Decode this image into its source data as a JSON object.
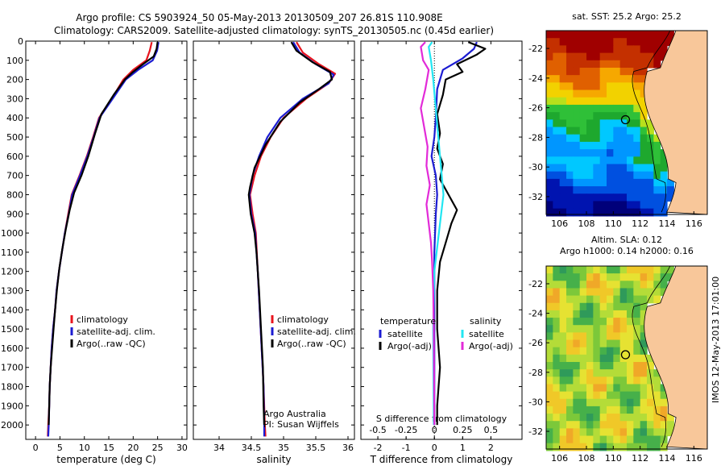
{
  "header": {
    "line1": "Argo profile: CS 5903924_50 05-May-2013 20130509_207 26.81S 110.908E",
    "line2": "Climatology: CARS2009. Satellite-adjusted climatology: synTS_20130505.nc (0.45d earlier)"
  },
  "side_stamp": "IMOS 12-May-2013 17:01:00",
  "colors": {
    "climatology": "#e8141e",
    "satellite": "#1c1cd2",
    "argo": "#000000",
    "salinity_satellite": "#22e6f2",
    "salinity_argo": "#e22ad8",
    "land": "#f8c79a"
  },
  "chart_data": [
    {
      "id": "temperature",
      "type": "line",
      "xlabel": "temperature (deg C)",
      "xlim": [
        -2,
        31
      ],
      "xticks": [
        0,
        5,
        10,
        15,
        20,
        25,
        30
      ],
      "ylim": [
        2075,
        0
      ],
      "yticks": [
        0,
        100,
        200,
        300,
        400,
        500,
        600,
        700,
        800,
        900,
        1000,
        1100,
        1200,
        1300,
        1400,
        1500,
        1600,
        1700,
        1800,
        1900,
        2000
      ],
      "legend": [
        "climatology",
        "satellite-adj. clim.",
        "Argo(..raw -QC)"
      ],
      "series": [
        {
          "name": "climatology",
          "color": "#e8141e",
          "points": [
            [
              23.8,
              5
            ],
            [
              23.4,
              50
            ],
            [
              22.7,
              100
            ],
            [
              20.0,
              150
            ],
            [
              18.0,
              200
            ],
            [
              15.6,
              300
            ],
            [
              13.0,
              400
            ],
            [
              11.8,
              500
            ],
            [
              10.5,
              600
            ],
            [
              9.0,
              700
            ],
            [
              7.4,
              800
            ],
            [
              6.7,
              900
            ],
            [
              6.0,
              1000
            ],
            [
              5.4,
              1100
            ],
            [
              4.8,
              1200
            ],
            [
              4.3,
              1300
            ],
            [
              4.0,
              1400
            ],
            [
              3.6,
              1500
            ],
            [
              3.3,
              1600
            ],
            [
              3.1,
              1700
            ],
            [
              2.9,
              1800
            ],
            [
              2.8,
              1900
            ],
            [
              2.6,
              2000
            ],
            [
              2.5,
              2060
            ]
          ]
        },
        {
          "name": "satellite-adj. clim.",
          "color": "#1c1cd2",
          "points": [
            [
              25.2,
              5
            ],
            [
              24.9,
              50
            ],
            [
              24.0,
              100
            ],
            [
              21.0,
              150
            ],
            [
              18.5,
              200
            ],
            [
              15.8,
              300
            ],
            [
              13.1,
              400
            ],
            [
              11.9,
              500
            ],
            [
              10.6,
              600
            ],
            [
              9.1,
              700
            ],
            [
              7.5,
              800
            ],
            [
              6.8,
              900
            ],
            [
              6.0,
              1000
            ],
            [
              5.4,
              1100
            ],
            [
              4.8,
              1200
            ],
            [
              4.3,
              1300
            ],
            [
              4.0,
              1400
            ],
            [
              3.6,
              1500
            ],
            [
              3.3,
              1600
            ],
            [
              3.1,
              1700
            ],
            [
              2.9,
              1800
            ],
            [
              2.8,
              1900
            ],
            [
              2.7,
              2000
            ],
            [
              2.6,
              2060
            ]
          ]
        },
        {
          "name": "Argo(..raw -QC)",
          "color": "#000000",
          "points": [
            [
              25.0,
              5
            ],
            [
              24.8,
              40
            ],
            [
              24.2,
              80
            ],
            [
              22.0,
              120
            ],
            [
              20.0,
              160
            ],
            [
              18.3,
              200
            ],
            [
              16.0,
              280
            ],
            [
              13.5,
              380
            ],
            [
              12.2,
              480
            ],
            [
              10.8,
              600
            ],
            [
              9.4,
              700
            ],
            [
              7.9,
              790
            ],
            [
              7.0,
              880
            ],
            [
              6.2,
              980
            ],
            [
              5.5,
              1080
            ],
            [
              4.9,
              1180
            ],
            [
              4.4,
              1290
            ],
            [
              4.0,
              1400
            ],
            [
              3.7,
              1500
            ],
            [
              3.4,
              1600
            ],
            [
              3.1,
              1700
            ],
            [
              2.9,
              1800
            ],
            [
              2.8,
              1900
            ],
            [
              2.7,
              2000
            ]
          ]
        }
      ]
    },
    {
      "id": "salinity",
      "type": "line",
      "xlabel": "salinity",
      "xlim": [
        33.6,
        36.1
      ],
      "xticks": [
        34,
        34.5,
        35,
        35.5,
        36
      ],
      "ylim": [
        2075,
        0
      ],
      "legend": [
        "climatology",
        "satellite-adj. clim.",
        "Argo(..raw -QC)"
      ],
      "credit": [
        "Argo Australia",
        "PI: Susan Wijffels"
      ],
      "series": [
        {
          "name": "climatology",
          "color": "#e8141e",
          "points": [
            [
              35.2,
              5
            ],
            [
              35.3,
              60
            ],
            [
              35.55,
              120
            ],
            [
              35.8,
              170
            ],
            [
              35.7,
              220
            ],
            [
              35.35,
              300
            ],
            [
              35.0,
              400
            ],
            [
              34.8,
              500
            ],
            [
              34.65,
              600
            ],
            [
              34.55,
              700
            ],
            [
              34.48,
              800
            ],
            [
              34.52,
              900
            ],
            [
              34.57,
              1000
            ],
            [
              34.6,
              1200
            ],
            [
              34.63,
              1400
            ],
            [
              34.66,
              1600
            ],
            [
              34.69,
              1800
            ],
            [
              34.71,
              2000
            ],
            [
              34.72,
              2060
            ]
          ]
        },
        {
          "name": "satellite-adj. clim.",
          "color": "#1c1cd2",
          "points": [
            [
              35.15,
              5
            ],
            [
              35.25,
              60
            ],
            [
              35.5,
              120
            ],
            [
              35.78,
              175
            ],
            [
              35.7,
              220
            ],
            [
              35.3,
              300
            ],
            [
              34.95,
              400
            ],
            [
              34.75,
              500
            ],
            [
              34.62,
              600
            ],
            [
              34.52,
              700
            ],
            [
              34.47,
              800
            ],
            [
              34.5,
              900
            ],
            [
              34.56,
              1000
            ],
            [
              34.6,
              1200
            ],
            [
              34.63,
              1400
            ],
            [
              34.66,
              1600
            ],
            [
              34.69,
              1800
            ],
            [
              34.7,
              2000
            ],
            [
              34.7,
              2060
            ]
          ]
        },
        {
          "name": "Argo(..raw -QC)",
          "color": "#000000",
          "points": [
            [
              35.12,
              5
            ],
            [
              35.2,
              50
            ],
            [
              35.45,
              110
            ],
            [
              35.72,
              160
            ],
            [
              35.75,
              200
            ],
            [
              35.55,
              250
            ],
            [
              35.25,
              320
            ],
            [
              34.95,
              420
            ],
            [
              34.72,
              540
            ],
            [
              34.55,
              660
            ],
            [
              34.48,
              760
            ],
            [
              34.46,
              800
            ],
            [
              34.49,
              900
            ],
            [
              34.55,
              1000
            ],
            [
              34.58,
              1100
            ],
            [
              34.62,
              1300
            ],
            [
              34.65,
              1500
            ],
            [
              34.68,
              1700
            ],
            [
              34.69,
              1900
            ],
            [
              34.7,
              2000
            ]
          ]
        }
      ]
    },
    {
      "id": "differences",
      "type": "line",
      "xlabel": "T difference from climatology",
      "xlabel_top": "S difference from climatology",
      "xlim": [
        -2.6,
        3.1
      ],
      "xticks": [
        -2,
        -1,
        0,
        1,
        2
      ],
      "sticks": [
        -0.5,
        -0.25,
        0,
        0.25,
        0.5
      ],
      "slim": [
        -0.65,
        0.775
      ],
      "legend_left_title": "temperature",
      "legend_right_title": "salinity",
      "legend_left": [
        "satellite",
        "Argo(-adj)"
      ],
      "legend_right": [
        "satellite",
        "Argo(-adj)"
      ],
      "series": [
        {
          "name": "T satellite",
          "color": "#1c1cd2",
          "points": [
            [
              1.5,
              5
            ],
            [
              1.4,
              40
            ],
            [
              1.0,
              90
            ],
            [
              0.3,
              150
            ],
            [
              0.1,
              250
            ],
            [
              0.05,
              400
            ],
            [
              0.0,
              500
            ],
            [
              -0.1,
              600
            ],
            [
              0.05,
              700
            ],
            [
              0.1,
              800
            ],
            [
              0.05,
              900
            ],
            [
              0.0,
              1100
            ],
            [
              0.0,
              1300
            ],
            [
              0.0,
              1600
            ],
            [
              0.0,
              2000
            ]
          ]
        },
        {
          "name": "T Argo(-adj)",
          "color": "#000000",
          "points": [
            [
              1.2,
              5
            ],
            [
              1.8,
              40
            ],
            [
              1.5,
              70
            ],
            [
              0.8,
              120
            ],
            [
              1.0,
              160
            ],
            [
              0.4,
              200
            ],
            [
              0.3,
              280
            ],
            [
              0.1,
              380
            ],
            [
              0.2,
              480
            ],
            [
              0.1,
              560
            ],
            [
              0.3,
              640
            ],
            [
              0.2,
              720
            ],
            [
              0.5,
              800
            ],
            [
              0.8,
              880
            ],
            [
              0.6,
              950
            ],
            [
              0.4,
              1050
            ],
            [
              0.2,
              1150
            ],
            [
              0.1,
              1300
            ],
            [
              0.1,
              1500
            ],
            [
              0.2,
              1700
            ],
            [
              0.1,
              1900
            ],
            [
              0.1,
              2000
            ]
          ]
        },
        {
          "name": "S satellite",
          "color": "#22e6f2",
          "scale": "s",
          "points": [
            [
              -0.02,
              5
            ],
            [
              -0.05,
              30
            ],
            [
              -0.03,
              100
            ],
            [
              -0.01,
              200
            ],
            [
              0.02,
              400
            ],
            [
              0.05,
              600
            ],
            [
              0.08,
              800
            ],
            [
              0.04,
              1000
            ],
            [
              0.0,
              1200
            ],
            [
              -0.01,
              1500
            ],
            [
              -0.005,
              2000
            ]
          ]
        },
        {
          "name": "S Argo(-adj)",
          "color": "#e22ad8",
          "scale": "s",
          "points": [
            [
              -0.08,
              5
            ],
            [
              -0.12,
              30
            ],
            [
              -0.1,
              100
            ],
            [
              -0.05,
              150
            ],
            [
              -0.08,
              250
            ],
            [
              -0.12,
              350
            ],
            [
              -0.09,
              450
            ],
            [
              -0.06,
              550
            ],
            [
              -0.07,
              650
            ],
            [
              -0.04,
              750
            ],
            [
              -0.07,
              850
            ],
            [
              -0.05,
              950
            ],
            [
              -0.03,
              1050
            ],
            [
              -0.02,
              1150
            ],
            [
              -0.01,
              1300
            ],
            [
              -0.005,
              1500
            ],
            [
              0.0,
              2000
            ]
          ]
        }
      ]
    },
    {
      "id": "sst_map",
      "type": "heatmap",
      "title": "sat. SST: 25.2  Argo: 25.2",
      "xticks": [
        106,
        108,
        110,
        112,
        114,
        116
      ],
      "yticks": [
        -22,
        -24,
        -26,
        -28,
        -30,
        -32
      ],
      "xlim": [
        105,
        117
      ],
      "ylim": [
        -33.2,
        -20.8
      ],
      "marker": [
        110.908,
        -26.81
      ]
    },
    {
      "id": "sla_map",
      "type": "heatmap",
      "title": "Altim. SLA: 0.12",
      "subtitle": "Argo h1000: 0.14  h2000: 0.16",
      "xticks": [
        106,
        108,
        110,
        112,
        114,
        116
      ],
      "yticks": [
        -22,
        -24,
        -26,
        -28,
        -30,
        -32
      ],
      "xlim": [
        105,
        117
      ],
      "ylim": [
        -33.2,
        -20.8
      ],
      "marker": [
        110.908,
        -26.81
      ]
    }
  ]
}
